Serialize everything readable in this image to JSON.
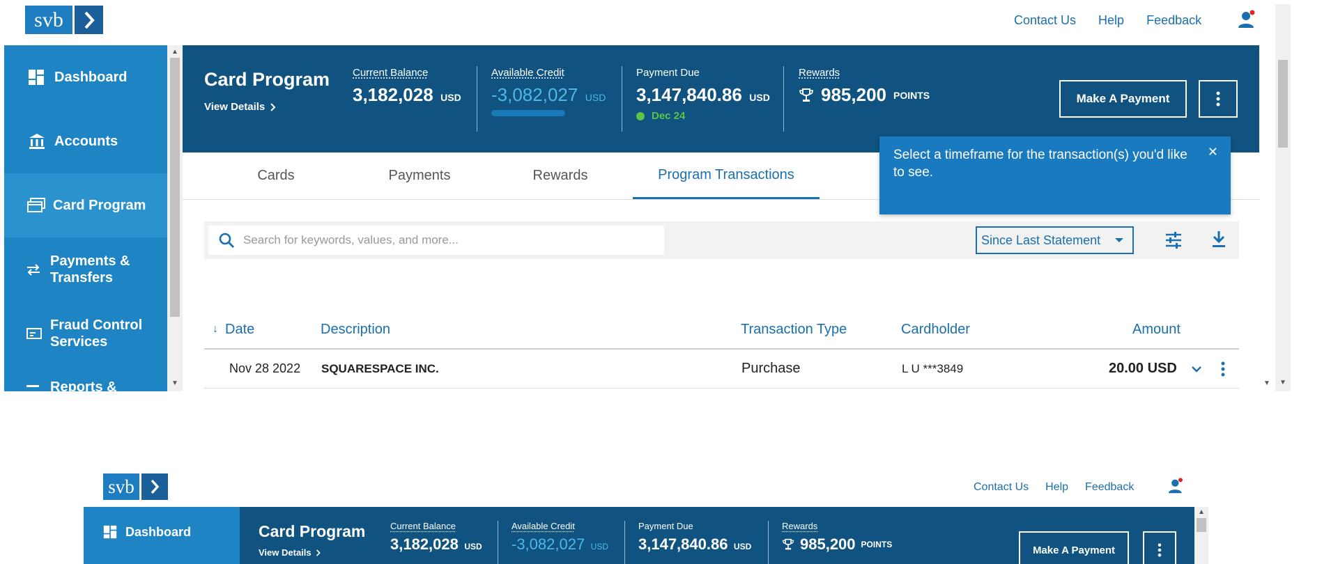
{
  "brand": {
    "logo_text": "svb"
  },
  "topnav": {
    "contact": "Contact Us",
    "help": "Help",
    "feedback": "Feedback"
  },
  "sidebar": {
    "items": [
      {
        "label": "Dashboard",
        "icon": "dashboard-icon"
      },
      {
        "label": "Accounts",
        "icon": "bank-icon"
      },
      {
        "label": "Card Program",
        "icon": "card-icon"
      },
      {
        "label": "Payments & Transfers",
        "icon": "transfer-icon"
      },
      {
        "label": "Fraud Control Services",
        "icon": "fraud-card-icon"
      },
      {
        "label": "Reports &",
        "icon": "reports-icon"
      }
    ],
    "active_index": 2
  },
  "header": {
    "title": "Card Program",
    "view_details": "View Details",
    "current_balance": {
      "label": "Current Balance",
      "value": "3,182,028",
      "unit": "USD"
    },
    "available_credit": {
      "label": "Available Credit",
      "value": "-3,082,027",
      "unit": "USD"
    },
    "payment_due": {
      "label": "Payment Due",
      "value": "3,147,840.86",
      "unit": "USD",
      "date": "Dec 24"
    },
    "rewards": {
      "label": "Rewards",
      "value": "985,200",
      "unit": "POINTS"
    },
    "make_payment": "Make A Payment"
  },
  "tabs": [
    "Cards",
    "Payments",
    "Rewards",
    "Program Transactions"
  ],
  "active_tab": 3,
  "tooltip": {
    "text": "Select a timeframe for the transaction(s) you'd like to see."
  },
  "filters": {
    "search_placeholder": "Search for keywords, values, and more...",
    "timeframe": "Since Last Statement"
  },
  "table": {
    "columns": [
      "Date",
      "Description",
      "Transaction Type",
      "Cardholder",
      "Amount"
    ],
    "rows": [
      {
        "date": "Nov 28 2022",
        "description": "SQUARESPACE INC.",
        "type": "Purchase",
        "cardholder": "L U ***3849",
        "amount": "20.00 USD"
      }
    ]
  },
  "colors": {
    "brand_blue": "#1e7cc0",
    "header_navy": "#105381",
    "sidebar_blue": "#1f84c4",
    "link_blue": "#1a6fae",
    "credit_cyan": "#4cb8ea",
    "due_green": "#5cc24a"
  }
}
